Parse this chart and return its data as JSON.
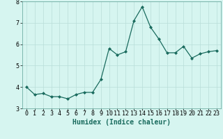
{
  "x": [
    0,
    1,
    2,
    3,
    4,
    5,
    6,
    7,
    8,
    9,
    10,
    11,
    12,
    13,
    14,
    15,
    16,
    17,
    18,
    19,
    20,
    21,
    22,
    23
  ],
  "y": [
    4.0,
    3.65,
    3.7,
    3.55,
    3.55,
    3.45,
    3.65,
    3.75,
    3.75,
    4.35,
    5.8,
    5.5,
    5.65,
    7.1,
    7.75,
    6.8,
    6.25,
    5.6,
    5.6,
    5.9,
    5.35,
    5.55,
    5.65,
    5.7
  ],
  "xlabel": "Humidex (Indice chaleur)",
  "ylim": [
    3.0,
    8.0
  ],
  "xlim": [
    -0.5,
    23.5
  ],
  "yticks": [
    3,
    4,
    5,
    6,
    7,
    8
  ],
  "xticks": [
    0,
    1,
    2,
    3,
    4,
    5,
    6,
    7,
    8,
    9,
    10,
    11,
    12,
    13,
    14,
    15,
    16,
    17,
    18,
    19,
    20,
    21,
    22,
    23
  ],
  "line_color": "#1a6b5e",
  "marker": "D",
  "marker_size": 2.0,
  "bg_color": "#d6f5f0",
  "grid_color": "#b8ddd8",
  "xlabel_fontsize": 7,
  "tick_fontsize": 6,
  "linewidth": 0.9
}
